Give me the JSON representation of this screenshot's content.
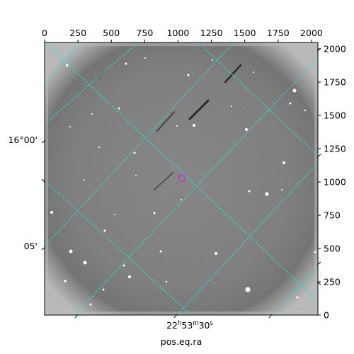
{
  "figure": {
    "x_axis_ticks": [
      "0",
      "250",
      "500",
      "750",
      "1000",
      "1250",
      "1500",
      "1750",
      "2000"
    ],
    "y_axis_ticks": [
      "0",
      "250",
      "500",
      "750",
      "1000",
      "1250",
      "1500",
      "1750",
      "2000"
    ],
    "x_range": [
      0,
      2048
    ],
    "y_range": [
      0,
      2048
    ],
    "ra_label": "22h53m30s",
    "ra_label_parts": {
      "h": "22",
      "h_unit": "h",
      "m": "53",
      "m_unit": "m",
      "s": "30",
      "s_unit": "s"
    },
    "dec_labels": [
      "16°00'",
      "05'"
    ],
    "xlabel": "pos.eq.ra",
    "colors": {
      "grid": "#22e0e0",
      "marker": "#cc33cc",
      "frame": "#000000",
      "background": "#6b6b6b"
    },
    "marker": {
      "x": 1030,
      "y": 1030,
      "icon": "target-circle-icon"
    }
  }
}
